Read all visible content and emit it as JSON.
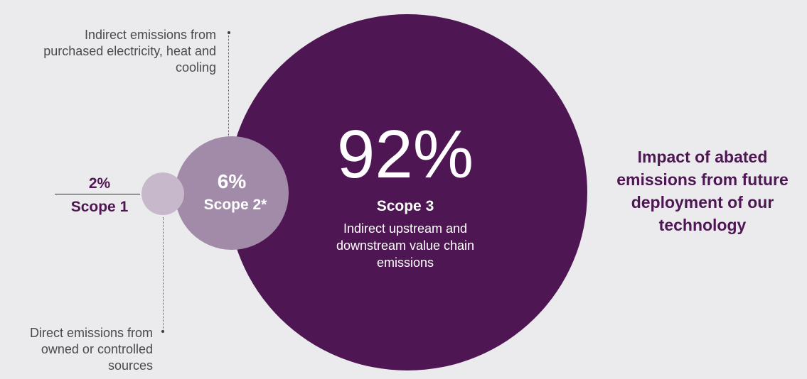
{
  "scope1": {
    "percent": "2%",
    "label": "Scope 1",
    "note": "Direct emissions from owned or controlled sources"
  },
  "scope2": {
    "percent": "6%",
    "label": "Scope 2*",
    "note": "Indirect emissions from purchased electricity, heat and cooling"
  },
  "scope3": {
    "percent": "92%",
    "label": "Scope 3",
    "note": "Indirect upstream and downstream value chain emissions"
  },
  "impact_text": "Impact of abated emissions from future deployment of our technology",
  "colors": {
    "scope3_fill": "#4f1654",
    "scope2_fill": "#a28aa9",
    "scope1_fill": "#c8b8cb",
    "background": "#ebebed",
    "accent_text": "#4f1654"
  }
}
